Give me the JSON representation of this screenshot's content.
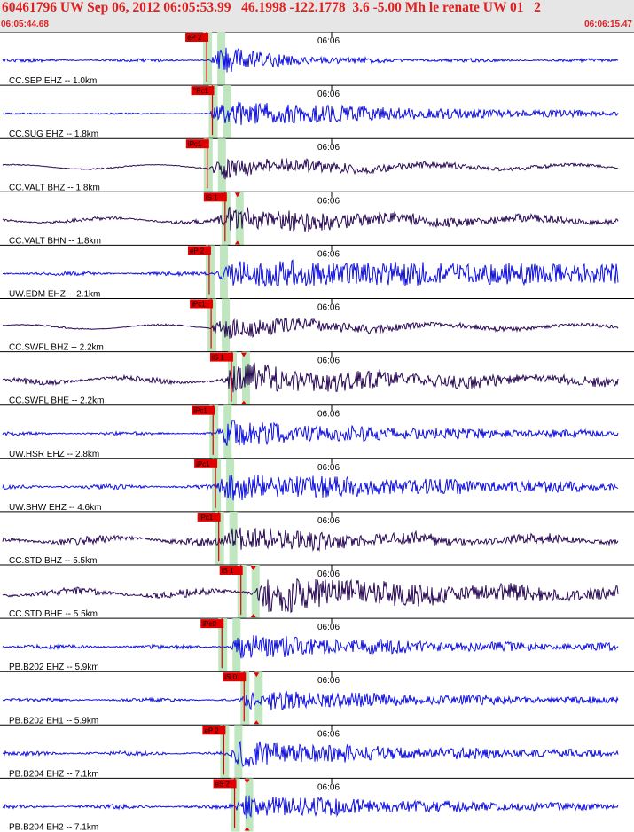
{
  "header": {
    "title": "60461796 UW Sep 06, 2012 06:05:53.99   46.1998 -122.1778  3.6 -5.00 Mh le renate UW 01   2",
    "start_time": "06:05:44.68",
    "end_time": "06:06:15.47"
  },
  "colors": {
    "blue_trace": "#1010e0",
    "purple_trace": "#2a0a55",
    "pick": "#e00000",
    "window": "#bfe6bf"
  },
  "traces": [
    {
      "label": "CC.SEP EHZ -- 1.0km",
      "tick": "06:06",
      "color": "blue",
      "amp": 18,
      "noise": 1.2,
      "onset": 0.33,
      "decay": 0.1,
      "picks": [
        {
          "label": "eP 2",
          "t": 0.326
        }
      ]
    },
    {
      "label": "CC.SUG EHZ -- 1.8km",
      "tick": "06:06",
      "color": "blue",
      "amp": 15,
      "noise": 0.6,
      "onset": 0.33,
      "decay": 0.35,
      "picks": [
        {
          "label": "^Pc1",
          "t": 0.335
        }
      ]
    },
    {
      "label": "CC.VALT BHZ -- 1.8km",
      "tick": "06:06",
      "color": "purple",
      "amp": 12,
      "noise": 0.5,
      "onset": 0.33,
      "decay": 0.25,
      "picks": [
        {
          "label": "iPc1",
          "t": 0.327
        }
      ]
    },
    {
      "label": "CC.VALT BHN -- 1.8km",
      "tick": "06:06",
      "color": "purple",
      "amp": 14,
      "noise": 1.5,
      "onset": 0.34,
      "decay": 0.3,
      "picks": [
        {
          "label": "iS 1",
          "t": 0.355
        }
      ]
    },
    {
      "label": "UW.EDM EHZ -- 2.1km",
      "tick": "06:06",
      "color": "blue",
      "amp": 14,
      "noise": 1.5,
      "onset": 0.34,
      "decay": 1.5,
      "picks": [
        {
          "label": "eP 2",
          "t": 0.33
        }
      ]
    },
    {
      "label": "CC.SWFL BHZ -- 2.2km",
      "tick": "06:06",
      "color": "purple",
      "amp": 12,
      "noise": 0.6,
      "onset": 0.33,
      "decay": 0.25,
      "picks": [
        {
          "label": "iPc1",
          "t": 0.333
        }
      ]
    },
    {
      "label": "CC.SWFL BHE -- 2.2km",
      "tick": "06:06",
      "color": "purple",
      "amp": 16,
      "noise": 2.2,
      "onset": 0.35,
      "decay": 0.3,
      "picks": [
        {
          "label": "iS 1",
          "t": 0.365
        }
      ]
    },
    {
      "label": "UW.HSR EHZ -- 2.8km",
      "tick": "06:06",
      "color": "blue",
      "amp": 15,
      "noise": 1.3,
      "onset": 0.34,
      "decay": 0.3,
      "picks": [
        {
          "label": "iPc1",
          "t": 0.336
        }
      ]
    },
    {
      "label": "UW.SHW EHZ -- 4.6km",
      "tick": "06:06",
      "color": "blue",
      "amp": 15,
      "noise": 1.8,
      "onset": 0.34,
      "decay": 0.4,
      "picks": [
        {
          "label": "iPc1",
          "t": 0.34
        }
      ]
    },
    {
      "label": "CC.STD BHZ -- 5.5km",
      "tick": "06:06",
      "color": "purple",
      "amp": 14,
      "noise": 3.0,
      "onset": 0.35,
      "decay": 0.2,
      "picks": [
        {
          "label": "iPc1",
          "t": 0.345
        }
      ]
    },
    {
      "label": "CC.STD BHE -- 5.5km",
      "tick": "06:06",
      "color": "purple",
      "amp": 18,
      "noise": 3.0,
      "onset": 0.4,
      "decay": 0.35,
      "picks": [
        {
          "label": "iS 1",
          "t": 0.38
        }
      ]
    },
    {
      "label": "PB.B202 EHZ -- 5.9km",
      "tick": "06:06",
      "color": "blue",
      "amp": 13,
      "noise": 1.6,
      "onset": 0.36,
      "decay": 0.3,
      "picks": [
        {
          "label": "iPc0",
          "t": 0.35
        }
      ]
    },
    {
      "label": "PB.B202 EH1 -- 5.9km",
      "tick": "06:06",
      "color": "blue",
      "amp": 12,
      "noise": 1.4,
      "onset": 0.38,
      "decay": 0.3,
      "picks": [
        {
          "label": "iS 0",
          "t": 0.385
        }
      ]
    },
    {
      "label": "PB.B204 EHZ -- 7.1km",
      "tick": "06:06",
      "color": "blue",
      "amp": 14,
      "noise": 1.8,
      "onset": 0.36,
      "decay": 0.3,
      "picks": [
        {
          "label": "eP 2",
          "t": 0.353
        }
      ]
    },
    {
      "label": "PB.B204 EH2 -- 7.1km",
      "tick": "06:06",
      "color": "blue",
      "amp": 13,
      "noise": 1.6,
      "onset": 0.37,
      "decay": 0.3,
      "picks": [
        {
          "label": "eS 2",
          "t": 0.37
        }
      ]
    }
  ]
}
